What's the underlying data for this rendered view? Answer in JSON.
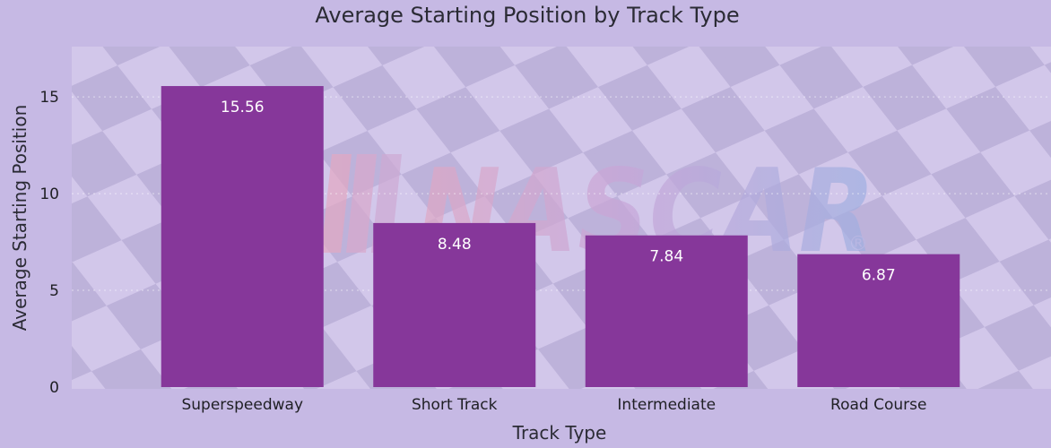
{
  "chart_data": {
    "type": "bar",
    "title": "Average Starting Position by Track Type",
    "xlabel": "Track Type",
    "ylabel": "Average Starting Position",
    "categories": [
      "Superspeedway",
      "Short Track",
      "Intermediate",
      "Road Course"
    ],
    "values": [
      15.56,
      8.48,
      7.84,
      6.87
    ],
    "data_labels": [
      "15.56",
      "8.48",
      "7.84",
      "6.87"
    ],
    "yticks": [
      0,
      5,
      10,
      15
    ],
    "ylim": [
      0,
      17.6
    ],
    "grid": true,
    "legend": "none",
    "bar_color": "#86379a",
    "background_color": "#c6b9e4",
    "plot_background_color": "#d6cded",
    "watermark": {
      "text": "NASCAR",
      "mark": "®"
    }
  }
}
